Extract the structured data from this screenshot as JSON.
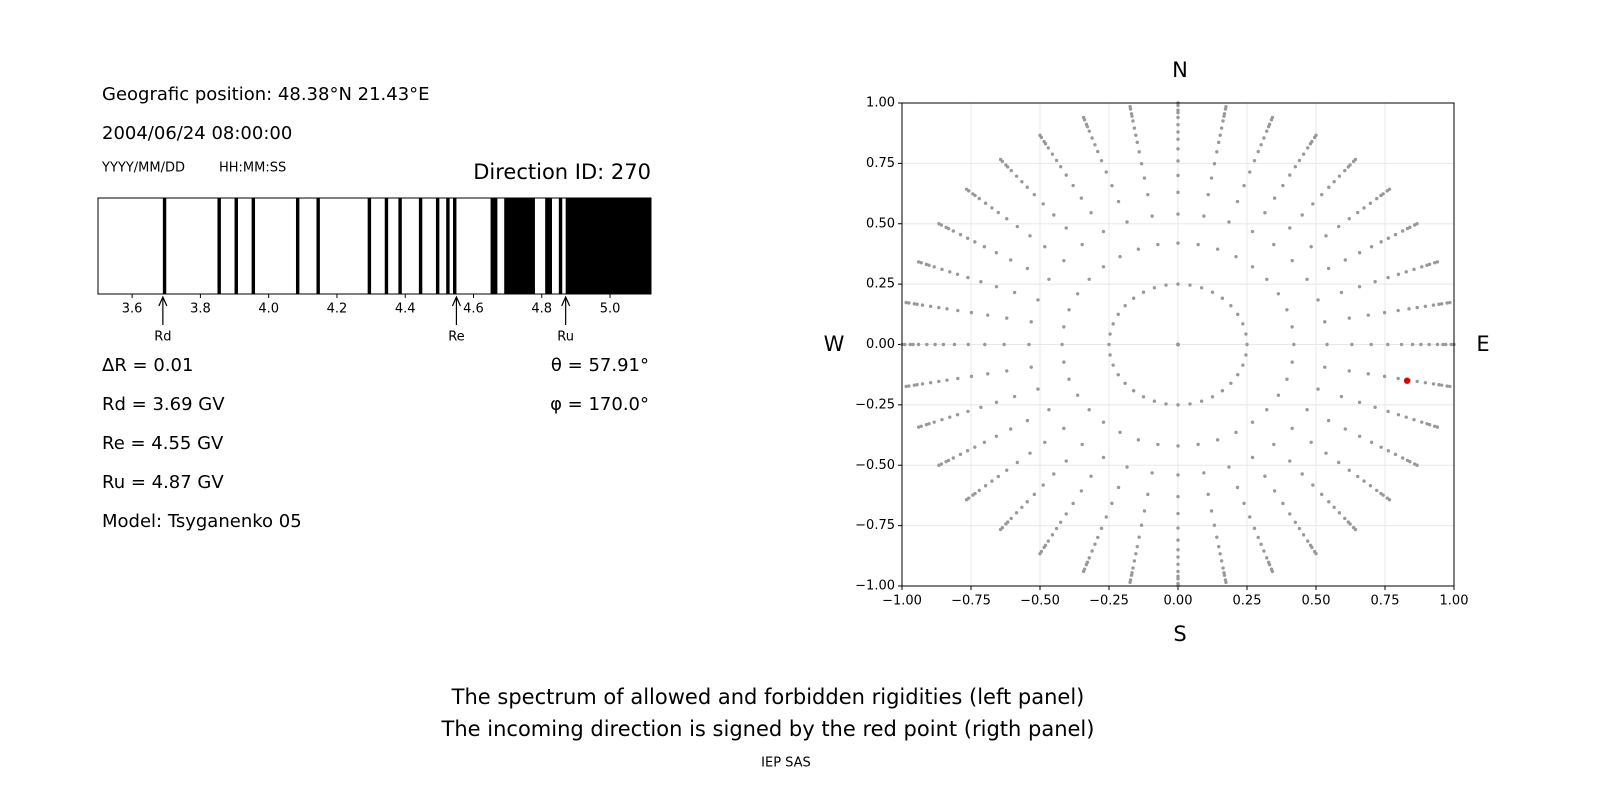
{
  "header": {
    "position": "Geografic position: 48.38°N 21.43°E",
    "datetime": "2004/06/24 08:00:00",
    "date_format": "YYYY/MM/DD",
    "time_format": "HH:MM:SS",
    "direction": "Direction ID: 270"
  },
  "stats": {
    "delta_r": "ΔR = 0.01",
    "rd": "Rd = 3.69 GV",
    "re": "Re = 4.55 GV",
    "ru": "Ru = 4.87 GV",
    "model": "Model: Tsyganenko 05",
    "theta": "θ = 57.91°",
    "phi": "φ = 170.0°"
  },
  "chart_data": [
    {
      "type": "spectrum",
      "color": "#000000",
      "xlim": [
        3.5,
        5.12
      ],
      "xticks": [
        3.6,
        3.8,
        {
          "value": 4,
          "label": "4.0"
        },
        4.2,
        4.4,
        4.6,
        4.8,
        {
          "value": 5,
          "label": "5.0"
        }
      ],
      "forbidden": [
        [
          3.69,
          3.7
        ],
        [
          3.85,
          3.86
        ],
        [
          3.9,
          3.91
        ],
        [
          3.95,
          3.96
        ],
        [
          4.08,
          4.09
        ],
        [
          4.14,
          4.15
        ],
        [
          4.29,
          4.3
        ],
        [
          4.34,
          4.35
        ],
        [
          4.38,
          4.39
        ],
        [
          4.44,
          4.45
        ],
        [
          4.49,
          4.5
        ],
        [
          4.52,
          4.53
        ],
        [
          4.54,
          4.55
        ],
        [
          4.65,
          4.67
        ],
        [
          4.69,
          4.78
        ],
        [
          4.81,
          4.83
        ],
        [
          4.85,
          4.86
        ],
        [
          4.87,
          5.12
        ]
      ],
      "markers": [
        {
          "label": "Rd",
          "value": 3.69
        },
        {
          "label": "Re",
          "value": 4.55
        },
        {
          "label": "Ru",
          "value": 4.87
        }
      ]
    },
    {
      "type": "scatter",
      "xlim": [
        -1,
        1
      ],
      "ylim": [
        -1,
        1
      ],
      "xticks": [
        {
          "value": -1,
          "label": "−1.00"
        },
        {
          "value": -0.75,
          "label": "−0.75"
        },
        {
          "value": -0.5,
          "label": "−0.50"
        },
        {
          "value": -0.25,
          "label": "−0.25"
        },
        {
          "value": 0,
          "label": "0.00"
        },
        0.25,
        {
          "value": 0.5,
          "label": "0.50"
        },
        0.75,
        {
          "value": 1,
          "label": "1.00"
        }
      ],
      "yticks": [
        {
          "value": -1,
          "label": "−1.00"
        },
        {
          "value": -0.75,
          "label": "−0.75"
        },
        {
          "value": -0.5,
          "label": "−0.50"
        },
        {
          "value": -0.25,
          "label": "−0.25"
        },
        {
          "value": 0,
          "label": "0.00"
        },
        0.25,
        {
          "value": 0.5,
          "label": "0.50"
        },
        0.75,
        {
          "value": 1,
          "label": "1.00"
        }
      ],
      "grid": true,
      "compass": {
        "north": "N",
        "south": "S",
        "east": "E",
        "west": "W"
      },
      "grid_points": {
        "color": "#999999",
        "radii": [
          0,
          0.25,
          0.42,
          0.54,
          0.63,
          0.7,
          0.76,
          0.81,
          0.85,
          0.88,
          0.91,
          0.94,
          0.96,
          0.97,
          0.99,
          1.0
        ],
        "azimuths": [
          0,
          10,
          20,
          30,
          40,
          50,
          60,
          70,
          80,
          90,
          100,
          110,
          120,
          130,
          140,
          150,
          160,
          170,
          180,
          190,
          200,
          210,
          220,
          230,
          240,
          250,
          260,
          270,
          280,
          290,
          300,
          310,
          320,
          330,
          340,
          350
        ]
      },
      "highlight": {
        "x": 0.83,
        "y": -0.15,
        "color": "#e00000"
      }
    }
  ],
  "footer": {
    "line1": "The spectrum of allowed and forbidden rigidities (left panel)",
    "line2": "The incoming direction is signed by the red point (rigth panel)",
    "credit": "IEP SAS"
  }
}
